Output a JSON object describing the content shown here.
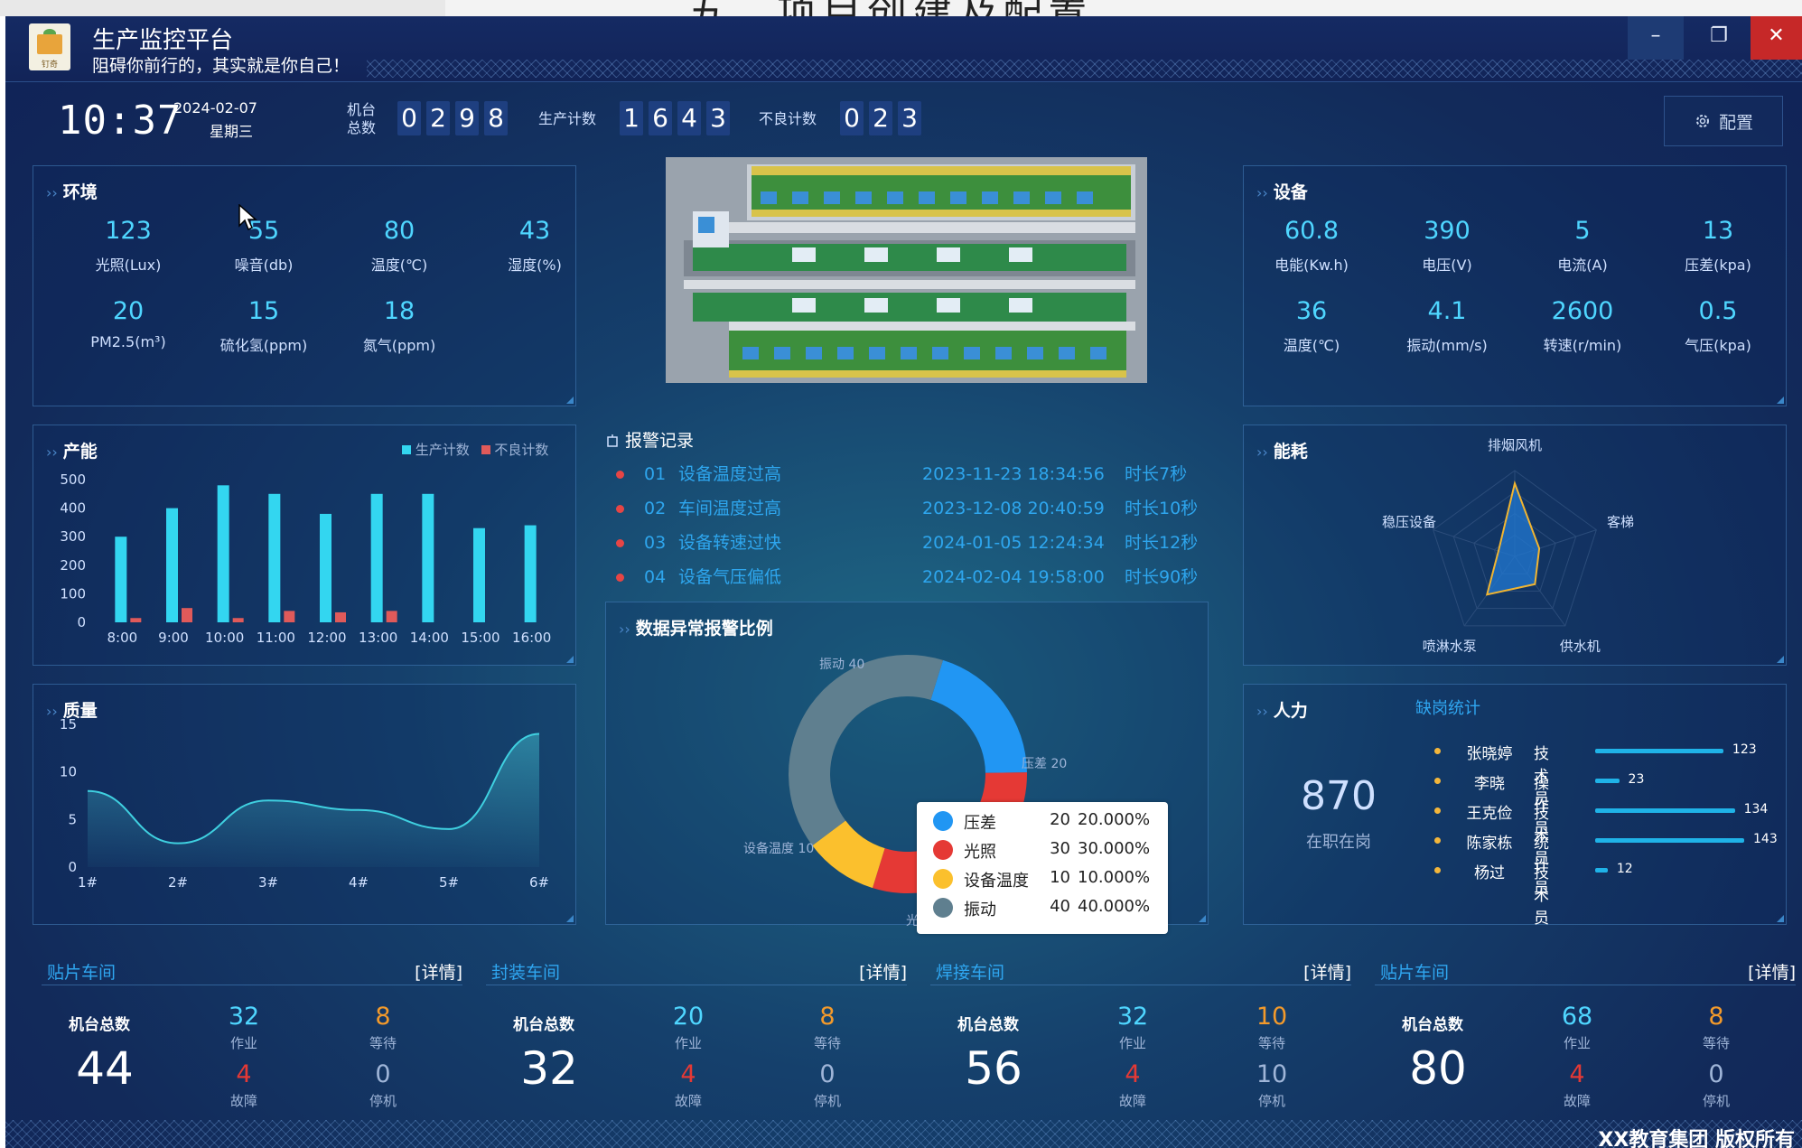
{
  "document": {
    "title_fragment": "五、项目创建及配置"
  },
  "window": {
    "title": "生产监控平台",
    "slogan": "阻碍你前行的，其实就是你自己！",
    "logo_text": "钉奇",
    "buttons": {
      "min": "–",
      "max": "❐",
      "close": "✕"
    }
  },
  "header": {
    "time": "10:37",
    "date": "2024-02-07",
    "weekday": "星期三",
    "machine_total_label_1": "机台",
    "machine_total_label_2": "总数",
    "machine_total_digits": [
      "0",
      "2",
      "9",
      "8"
    ],
    "production_label": "生产计数",
    "production_digits": [
      "1",
      "6",
      "4",
      "3"
    ],
    "defect_label": "不良计数",
    "defect_digits": [
      "0",
      "2",
      "3"
    ],
    "config_label": "配置",
    "config_icon": "gear-icon"
  },
  "environment": {
    "title": "环境",
    "metrics": [
      {
        "value": "123",
        "label": "光照(Lux)"
      },
      {
        "value": "55",
        "label": "噪音(db)"
      },
      {
        "value": "80",
        "label": "温度(℃)"
      },
      {
        "value": "43",
        "label": "湿度(%)"
      },
      {
        "value": "20",
        "label": "PM2.5(m³)"
      },
      {
        "value": "15",
        "label": "硫化氢(ppm)"
      },
      {
        "value": "18",
        "label": "氮气(ppm)"
      }
    ]
  },
  "equipment": {
    "title": "设备",
    "metrics": [
      {
        "value": "60.8",
        "label": "电能(Kw.h)"
      },
      {
        "value": "390",
        "label": "电压(V)"
      },
      {
        "value": "5",
        "label": "电流(A)"
      },
      {
        "value": "13",
        "label": "压差(kpa)"
      },
      {
        "value": "36",
        "label": "温度(℃)"
      },
      {
        "value": "4.1",
        "label": "振动(mm/s)"
      },
      {
        "value": "2600",
        "label": "转速(r/min)"
      },
      {
        "value": "0.5",
        "label": "气压(kpa)"
      }
    ]
  },
  "capacity": {
    "title": "产能",
    "legend": {
      "production": "生产计数",
      "defect": "不良计数"
    },
    "colors": {
      "production": "#33d6f0",
      "defect": "#e05a5a"
    },
    "y_ticks": [
      "500",
      "400",
      "300",
      "200",
      "100",
      "0"
    ]
  },
  "quality": {
    "title": "质量",
    "y_ticks": [
      "15",
      "10",
      "5",
      "0"
    ]
  },
  "alarms": {
    "title": "报警记录",
    "rows": [
      {
        "no": "01",
        "msg": "设备温度过高",
        "time": "2023-11-23 18:34:56",
        "dur": "时长7秒"
      },
      {
        "no": "02",
        "msg": "车间温度过高",
        "time": "2023-12-08 20:40:59",
        "dur": "时长10秒"
      },
      {
        "no": "03",
        "msg": "设备转速过快",
        "time": "2024-01-05 12:24:34",
        "dur": "时长12秒"
      },
      {
        "no": "04",
        "msg": "设备气压偏低",
        "time": "2024-02-04 19:58:00",
        "dur": "时长90秒"
      }
    ]
  },
  "anomaly": {
    "title": "数据异常报警比例",
    "outer_labels": {
      "vibration": "振动 40",
      "pressure": "压差 20",
      "temp": "设备温度 10",
      "light": "光"
    },
    "legend": [
      {
        "name": "压差",
        "value": "20",
        "pct": "20.000%",
        "color": "#2196f3"
      },
      {
        "name": "光照",
        "value": "30",
        "pct": "30.000%",
        "color": "#e53935"
      },
      {
        "name": "设备温度",
        "value": "10",
        "pct": "10.000%",
        "color": "#fbc02d"
      },
      {
        "name": "振动",
        "value": "40",
        "pct": "40.000%",
        "color": "#5f7f8f"
      }
    ]
  },
  "energy": {
    "title": "能耗",
    "axes": [
      "排烟风机",
      "客梯",
      "供水机",
      "喷淋水泵",
      "稳压设备"
    ]
  },
  "manpower": {
    "title": "人力",
    "count": "870",
    "count_label": "在职在岗",
    "absence_title": "缺岗统计",
    "staff": [
      {
        "name": "张晓婷",
        "role": "技术员",
        "value": "123"
      },
      {
        "name": "李晓",
        "role": "操作员",
        "value": "23"
      },
      {
        "name": "王克俭",
        "role": "技术员",
        "value": "134"
      },
      {
        "name": "陈家栋",
        "role": "统计员",
        "value": "143"
      },
      {
        "name": "杨过",
        "role": "技术员",
        "value": "12"
      }
    ]
  },
  "workshops": [
    {
      "name": "贴片车间",
      "detail": "[详情]",
      "total_label": "机台总数",
      "total": "44",
      "work": "32",
      "work_label": "作业",
      "wait": "8",
      "wait_label": "等待",
      "fault": "4",
      "fault_label": "故障",
      "stop": "0",
      "stop_label": "停机"
    },
    {
      "name": "封装车间",
      "detail": "[详情]",
      "total_label": "机台总数",
      "total": "32",
      "work": "20",
      "work_label": "作业",
      "wait": "8",
      "wait_label": "等待",
      "fault": "4",
      "fault_label": "故障",
      "stop": "0",
      "stop_label": "停机"
    },
    {
      "name": "焊接车间",
      "detail": "[详情]",
      "total_label": "机台总数",
      "total": "56",
      "work": "32",
      "work_label": "作业",
      "wait": "10",
      "wait_label": "等待",
      "fault": "4",
      "fault_label": "故障",
      "stop": "10",
      "stop_label": "停机"
    },
    {
      "name": "贴片车间",
      "detail": "[详情]",
      "total_label": "机台总数",
      "total": "80",
      "work": "68",
      "work_label": "作业",
      "wait": "8",
      "wait_label": "等待",
      "fault": "4",
      "fault_label": "故障",
      "stop": "0",
      "stop_label": "停机"
    }
  ],
  "footer": {
    "copyright": "XX教育集团 版权所有"
  },
  "chart_data": [
    {
      "type": "bar",
      "categories": [
        "8:00",
        "9:00",
        "10:00",
        "11:00",
        "12:00",
        "13:00",
        "14:00",
        "15:00",
        "16:00"
      ],
      "series": [
        {
          "name": "生产计数",
          "values": [
            300,
            400,
            480,
            450,
            380,
            450,
            450,
            330,
            340
          ]
        },
        {
          "name": "不良计数",
          "values": [
            15,
            50,
            15,
            40,
            35,
            40,
            0,
            0,
            0
          ]
        }
      ],
      "ylim": [
        0,
        500
      ]
    },
    {
      "type": "area",
      "categories": [
        "1#",
        "2#",
        "3#",
        "4#",
        "5#",
        "6#"
      ],
      "values": [
        8,
        2.5,
        7,
        6,
        4,
        14
      ],
      "ylim": [
        0,
        15
      ]
    },
    {
      "type": "pie",
      "labels": [
        "压差",
        "光照",
        "设备温度",
        "振动"
      ],
      "values": [
        20,
        30,
        10,
        40
      ]
    },
    {
      "type": "radar",
      "axes": [
        "排烟风机",
        "客梯",
        "供水机",
        "喷淋水泵",
        "稳压设备"
      ],
      "values": [
        0.85,
        0.3,
        0.4,
        0.55,
        0.2
      ]
    }
  ]
}
